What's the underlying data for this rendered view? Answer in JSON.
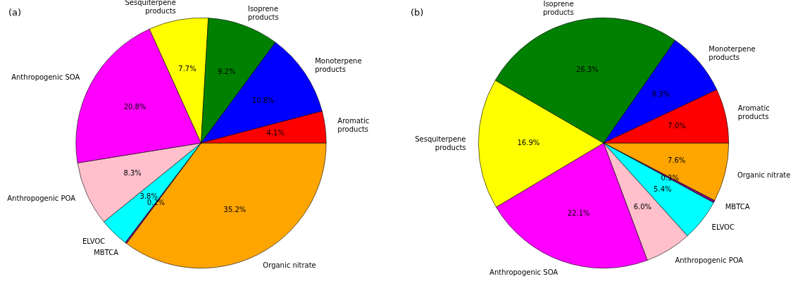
{
  "chart_data": [
    {
      "type": "pie",
      "title": "(a)",
      "categories": [
        "Aromatic\nproducts",
        "Monoterpene\nproducts",
        "Isoprene\nproducts",
        "Sesquiterpene\nproducts",
        "Anthropogenic SOA",
        "Anthropogenic POA",
        "ELVOC",
        "MBTCA",
        "Organic nitrate"
      ],
      "values": [
        4.1,
        10.8,
        9.2,
        7.7,
        20.8,
        8.3,
        3.8,
        0.2,
        35.2
      ],
      "value_labels": [
        "4.1%",
        "10.8%",
        "9.2%",
        "7.7%",
        "20.8%",
        "8.3%",
        "3.8%",
        "0.2%",
        "35.2%"
      ],
      "colors": [
        "#ff0000",
        "#0000ff",
        "#008000",
        "#ffff00",
        "#ff00ff",
        "#ffc0cb",
        "#00ffff",
        "#800080",
        "#ffa500"
      ]
    },
    {
      "type": "pie",
      "title": "(b)",
      "categories": [
        "Aromatic\nproducts",
        "Monoterpene\nproducts",
        "Isoprene\nproducts",
        "Sesquiterpene\nproducts",
        "Anthropogenic SOA",
        "Anthropogenic POA",
        "ELVOC",
        "MBTCA",
        "Organic nitrate"
      ],
      "values": [
        7.0,
        8.3,
        26.3,
        16.9,
        22.1,
        6.0,
        5.4,
        0.3,
        7.6
      ],
      "value_labels": [
        "7.0%",
        "8.3%",
        "26.3%",
        "16.9%",
        "22.1%",
        "6.0%",
        "5.4%",
        "0.3%",
        "7.6%"
      ],
      "colors": [
        "#ff0000",
        "#0000ff",
        "#008000",
        "#ffff00",
        "#ff00ff",
        "#ffc0cb",
        "#00ffff",
        "#800080",
        "#ffa500"
      ]
    }
  ]
}
